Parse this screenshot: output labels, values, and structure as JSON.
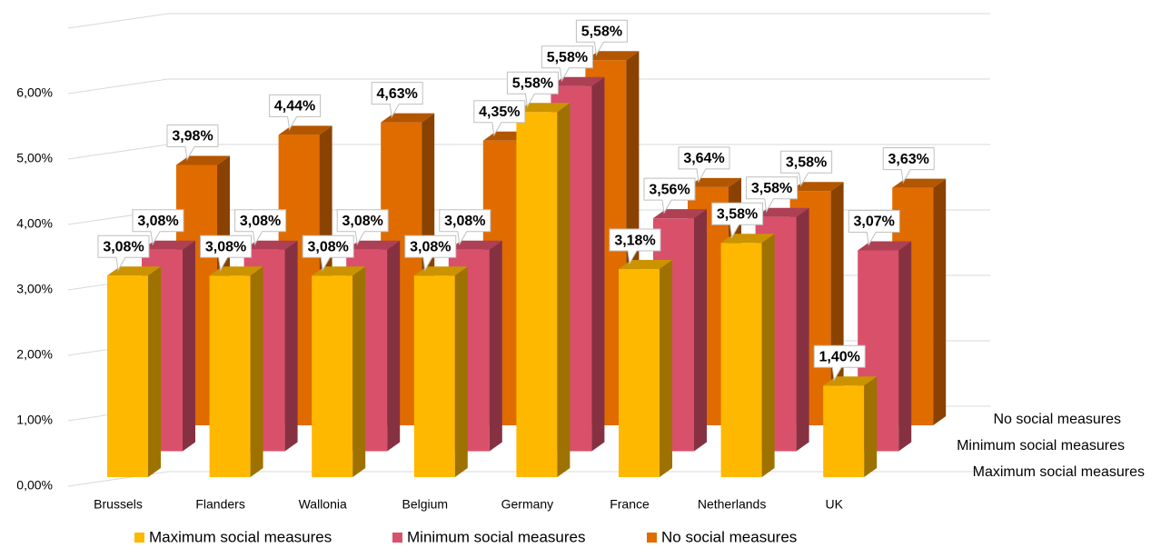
{
  "chart_data": {
    "type": "bar3d",
    "categories": [
      "Brussels",
      "Flanders",
      "Wallonia",
      "Belgium",
      "Germany",
      "France",
      "Netherlands",
      "UK"
    ],
    "series": [
      {
        "name": "Maximum social measures",
        "color": "#ffb800",
        "values": [
          3.08,
          3.08,
          3.08,
          3.08,
          5.58,
          3.18,
          3.58,
          1.4
        ],
        "value_labels": [
          "3,08%",
          "3,08%",
          "3,08%",
          "3,08%",
          "5,58%",
          "3,18%",
          "3,58%",
          "1,40%"
        ]
      },
      {
        "name": "Minimum social measures",
        "color": "#d9506b",
        "values": [
          3.08,
          3.08,
          3.08,
          3.08,
          5.58,
          3.56,
          3.58,
          3.07
        ],
        "value_labels": [
          "3,08%",
          "3,08%",
          "3,08%",
          "3,08%",
          "5,58%",
          "3,56%",
          "3,58%",
          "3,07%"
        ]
      },
      {
        "name": "No social measures",
        "color": "#e06c00",
        "values": [
          3.98,
          4.44,
          4.63,
          4.35,
          5.58,
          3.64,
          3.58,
          3.63
        ],
        "value_labels": [
          "3,98%",
          "4,44%",
          "4,63%",
          "4,35%",
          "5,58%",
          "3,64%",
          "3,58%",
          "3,63%"
        ]
      }
    ],
    "ylim": [
      0,
      7
    ],
    "yticks": [
      {
        "value": 0,
        "label": "0,00%"
      },
      {
        "value": 1,
        "label": "1,00%"
      },
      {
        "value": 2,
        "label": "2,00%"
      },
      {
        "value": 3,
        "label": "3,00%"
      },
      {
        "value": 4,
        "label": "4,00%"
      },
      {
        "value": 5,
        "label": "5,00%"
      },
      {
        "value": 6,
        "label": "6,00%"
      }
    ],
    "grid": true,
    "legend": "bottom"
  }
}
